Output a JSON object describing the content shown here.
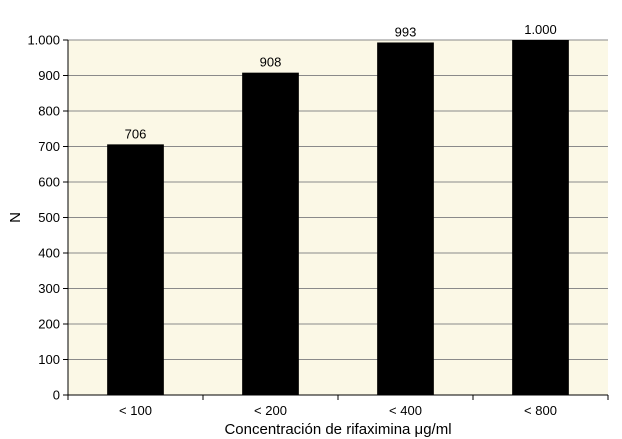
{
  "chart_data": {
    "type": "bar",
    "categories": [
      "< 100",
      "< 200",
      "< 400",
      "< 800"
    ],
    "values": [
      706,
      908,
      993,
      1000
    ],
    "value_labels": [
      "706",
      "908",
      "993",
      "1.000"
    ],
    "title": "",
    "xlabel": "Concentración de rifaximina μg/ml",
    "ylabel": "N",
    "ylim": [
      0,
      1000
    ],
    "yticks": [
      0,
      100,
      200,
      300,
      400,
      500,
      600,
      700,
      800,
      900,
      1000
    ],
    "ytick_labels": [
      "0",
      "100",
      "200",
      "300",
      "400",
      "500",
      "600",
      "700",
      "800",
      "900",
      "1.000"
    ],
    "grid": true,
    "colors": {
      "plot_background": "#fbf8e6",
      "bar": "#000000",
      "grid": "#8a8a8a"
    }
  }
}
